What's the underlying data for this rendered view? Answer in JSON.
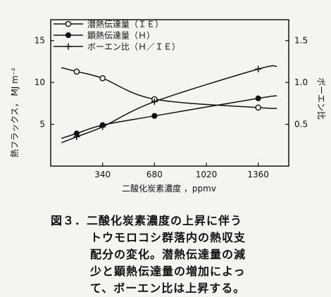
{
  "chart_data": {
    "type": "line",
    "x": [
      170,
      340,
      680,
      1360
    ],
    "series": [
      {
        "name": "潜熱伝達量（ＩＥ）",
        "axis": "left",
        "marker": "open-circle",
        "values": [
          11.3,
          10.5,
          8.0,
          7.0
        ],
        "curve_end": 6.9
      },
      {
        "name": "顕熱伝達量（Ｈ）",
        "axis": "left",
        "marker": "filled-circle",
        "values": [
          3.9,
          4.9,
          6.0,
          8.1
        ],
        "curve_end": 8.4
      },
      {
        "name": "ボーエン比（Ｈ／ＩＥ）",
        "axis": "right",
        "marker": "plus",
        "values": [
          0.35,
          0.47,
          0.77,
          1.16
        ],
        "curve_end": 1.19
      }
    ],
    "xlim": [
      0,
      1560
    ],
    "ylim_left": [
      0,
      17.5
    ],
    "ylim_right": [
      0,
      1.75
    ],
    "x_ticks": [
      "340",
      "680",
      "1020",
      "1360"
    ],
    "y_ticks_left": [
      "5",
      "10",
      "15"
    ],
    "y_ticks_right": [
      "0.5",
      "1.0",
      "1.5"
    ],
    "xlabel": "二酸化炭素濃度 ，ppmv",
    "ylabel_left": "熱フラックス， MJ m⁻²",
    "ylabel_right": "ボーエン比",
    "legend_placement": "top-left",
    "grid": false
  },
  "caption": {
    "lines": [
      "図３．二酸化炭素濃度の上昇に伴う",
      "トウモロコシ群落内の熱収支",
      "配分の変化。潜熱伝達量の減",
      "少と顕熱伝達量の増加によっ",
      "て、ボーエン比は上昇する。"
    ]
  }
}
